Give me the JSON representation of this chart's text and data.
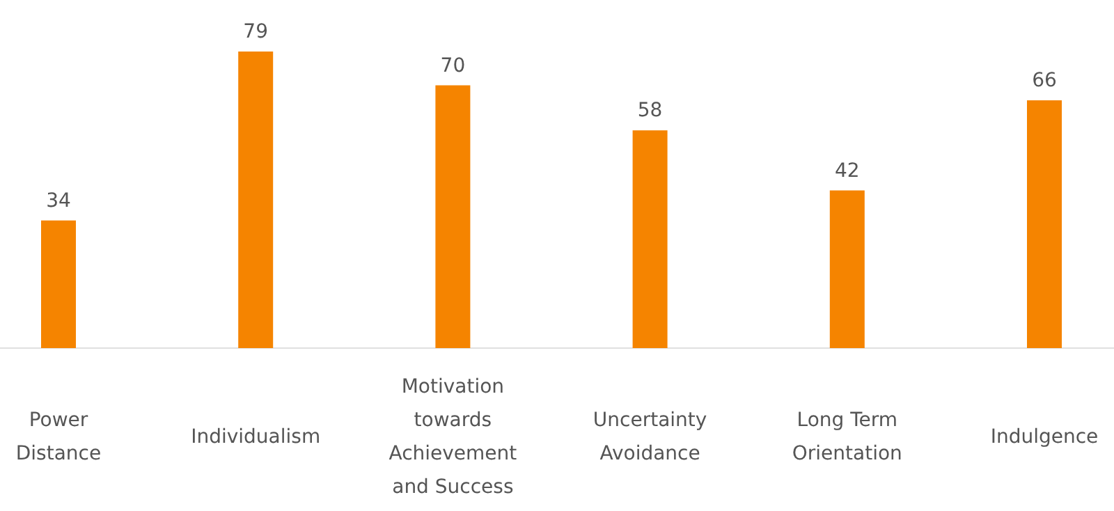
{
  "chart_data": {
    "type": "bar",
    "categories": [
      "Power Distance",
      "Individualism",
      "Motivation towards Achievement and Success",
      "Uncertainty Avoidance",
      "Long Term Orientation",
      "Indulgence"
    ],
    "values": [
      34,
      79,
      70,
      58,
      42,
      66
    ],
    "color": "#f58400",
    "data_labels": true
  }
}
